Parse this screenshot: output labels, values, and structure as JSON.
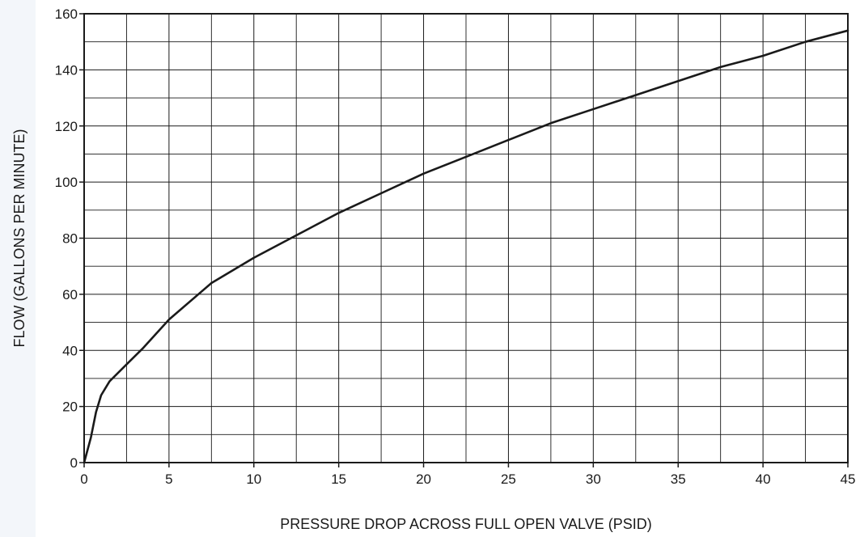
{
  "chart_data": {
    "type": "line",
    "title": "",
    "xlabel": "PRESSURE DROP ACROSS FULL OPEN VALVE (PSID)",
    "ylabel": "FLOW (GALLONS PER MINUTE)",
    "xlim": [
      0,
      45
    ],
    "ylim": [
      0,
      160
    ],
    "x_ticks": [
      0,
      5,
      10,
      15,
      20,
      25,
      30,
      35,
      40,
      45
    ],
    "y_ticks": [
      0,
      20,
      40,
      60,
      80,
      100,
      120,
      140,
      160
    ],
    "x_tick_labels": [
      "0",
      "5",
      "10",
      "15",
      "20",
      "25",
      "30",
      "35",
      "40",
      "45"
    ],
    "y_tick_labels": [
      "0",
      "20",
      "40",
      "60",
      "80",
      "100",
      "120",
      "140",
      "160"
    ],
    "grid": true,
    "x_minor_step": 2.5,
    "y_minor_step": 10,
    "series": [
      {
        "color": "#1a1a1a",
        "x": [
          0,
          0.4,
          0.7,
          1.0,
          1.5,
          2.5,
          3.5,
          5,
          7.5,
          10,
          12.5,
          15,
          17.5,
          20,
          22.5,
          25,
          27.5,
          30,
          32.5,
          35,
          37.5,
          40,
          42.5,
          45
        ],
        "y": [
          0,
          9,
          18,
          24,
          29,
          35,
          41,
          51,
          64,
          73,
          81,
          89,
          96,
          103,
          109,
          115,
          121,
          126,
          131,
          136,
          141,
          145,
          150,
          154
        ]
      }
    ]
  }
}
